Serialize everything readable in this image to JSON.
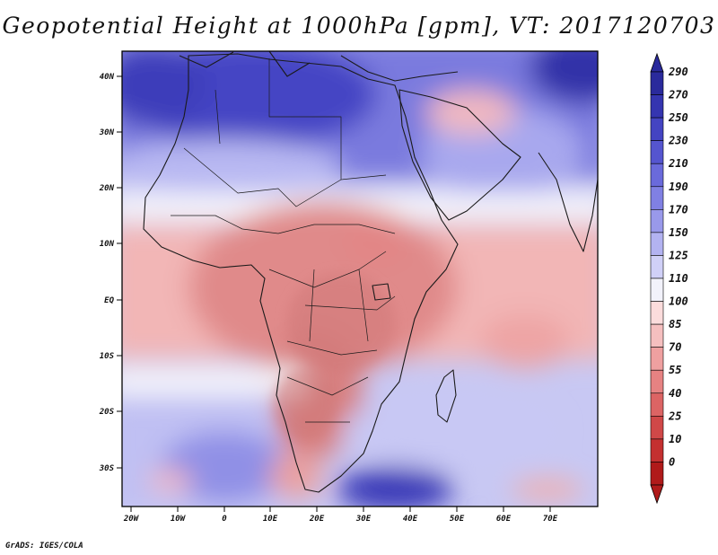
{
  "title": "Geopotential Height at 1000hPa [gpm], VT: 2017120703",
  "credit": "GrADS: IGES/COLA",
  "lat_labels": [
    "40N",
    "30N",
    "20N",
    "10N",
    "EQ",
    "10S",
    "20S",
    "30S"
  ],
  "lon_labels": [
    "20W",
    "10W",
    "0",
    "10E",
    "20E",
    "30E",
    "40E",
    "50E",
    "60E",
    "70E"
  ],
  "colorbar": {
    "levels": [
      "290",
      "270",
      "250",
      "230",
      "210",
      "190",
      "170",
      "150",
      "125",
      "110",
      "100",
      "85",
      "70",
      "55",
      "40",
      "25",
      "10",
      "0"
    ],
    "colors": [
      "#2a2a9c",
      "#3535b0",
      "#4444c2",
      "#5555cf",
      "#6a6adb",
      "#8080e3",
      "#9999ea",
      "#b3b3f1",
      "#d0d0f7",
      "#f2f2fb",
      "#fbdcdc",
      "#f5bfbf",
      "#efa0a0",
      "#e68282",
      "#dc6464",
      "#d04848",
      "#c43030",
      "#b01a1a"
    ]
  },
  "map": {
    "lon_range": [
      -22,
      80
    ],
    "lat_range": [
      -37,
      45
    ],
    "field_colors": {
      "deep_blue": "#3a3ab8",
      "blue": "#7070dc",
      "light_blue": "#b3b3f1",
      "pale_blue": "#d8d8f7",
      "white": "#f7f6fb",
      "pale_red": "#f8d2d2",
      "light_red": "#f1b2b2",
      "red": "#e89696",
      "dark_red": "#d98282",
      "deep_red": "#cc7070"
    }
  }
}
